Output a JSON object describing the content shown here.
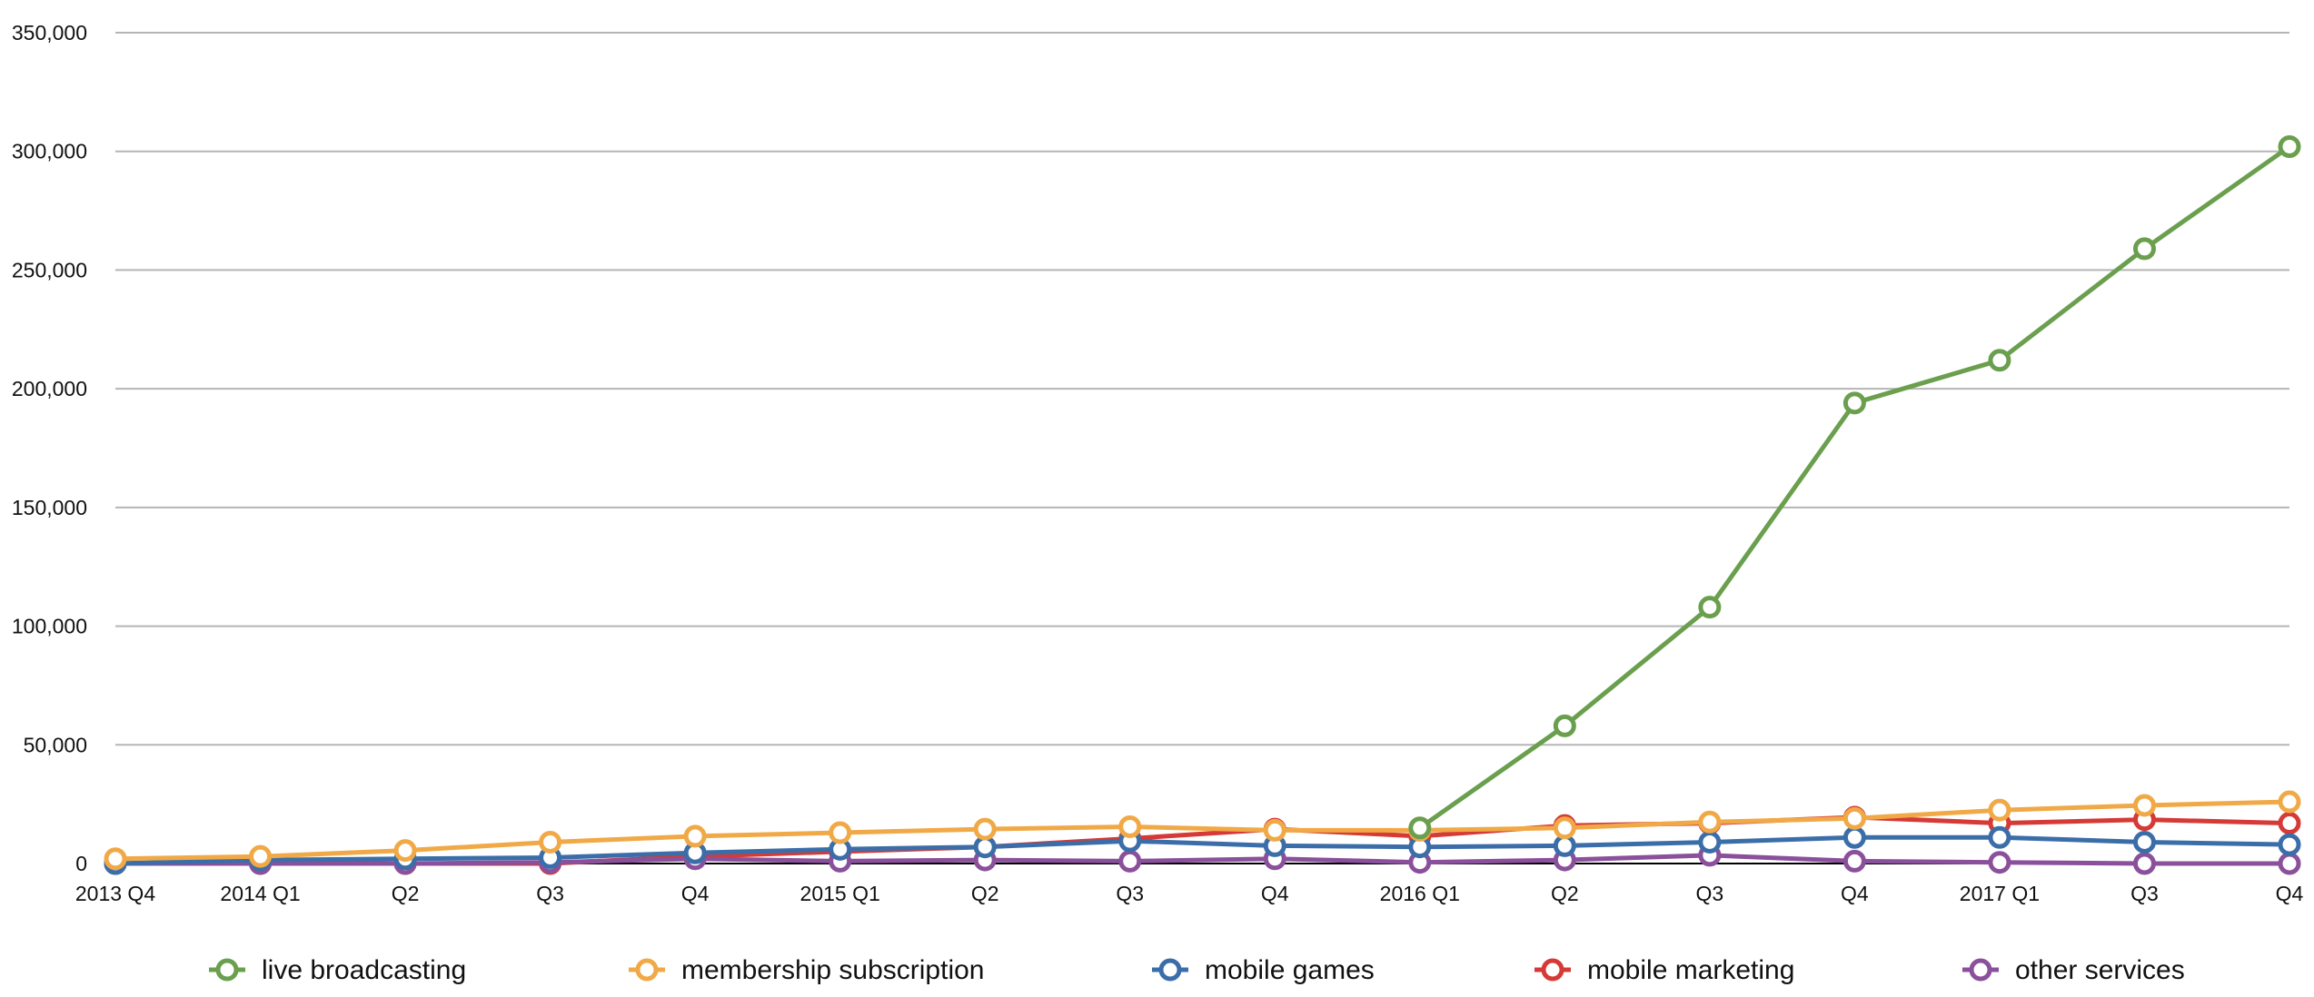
{
  "chart_data": {
    "type": "line",
    "categories": [
      "2013 Q4",
      "2014 Q1",
      "Q2",
      "Q3",
      "Q4",
      "2015 Q1",
      "Q2",
      "Q3",
      "Q4",
      "2016 Q1",
      "Q2",
      "Q3",
      "Q4",
      "2017 Q1",
      "Q3",
      "Q4"
    ],
    "yticks": [
      "0",
      "50,000",
      "100,000",
      "150,000",
      "200,000",
      "250,000",
      "300,000",
      "350,000"
    ],
    "ylim": [
      0,
      350000
    ],
    "grid": true,
    "legend_position": "bottom",
    "series": [
      {
        "name": "mobile marketing",
        "color": "#d53a36",
        "values": [
          0,
          0,
          0,
          0,
          3000,
          5000,
          7000,
          10500,
          14500,
          11500,
          16000,
          17000,
          19500,
          17000,
          18500,
          17000
        ]
      },
      {
        "name": "other services",
        "color": "#8a509b",
        "values": [
          0,
          0,
          0,
          500,
          2000,
          1000,
          1500,
          1000,
          2000,
          500,
          1500,
          3500,
          1000,
          500,
          0,
          0
        ]
      },
      {
        "name": "mobile games",
        "color": "#3b6ea9",
        "values": [
          0,
          1500,
          2000,
          2500,
          4500,
          6000,
          7000,
          9500,
          7500,
          7000,
          7500,
          9000,
          11000,
          11000,
          9000,
          8000
        ]
      },
      {
        "name": "membership subscription",
        "color": "#f0a946",
        "values": [
          2000,
          3000,
          5500,
          9000,
          11500,
          13000,
          14500,
          15500,
          14000,
          14000,
          15000,
          17500,
          19000,
          22500,
          24500,
          26000
        ]
      },
      {
        "name": "live broadcasting",
        "color": "#6a9f4e",
        "values": [
          null,
          null,
          null,
          null,
          null,
          null,
          null,
          null,
          null,
          15000,
          58000,
          108000,
          194000,
          212000,
          259000,
          302000
        ]
      }
    ],
    "legend": [
      "live broadcasting",
      "membership subscription",
      "mobile games",
      "mobile marketing",
      "other services"
    ]
  }
}
